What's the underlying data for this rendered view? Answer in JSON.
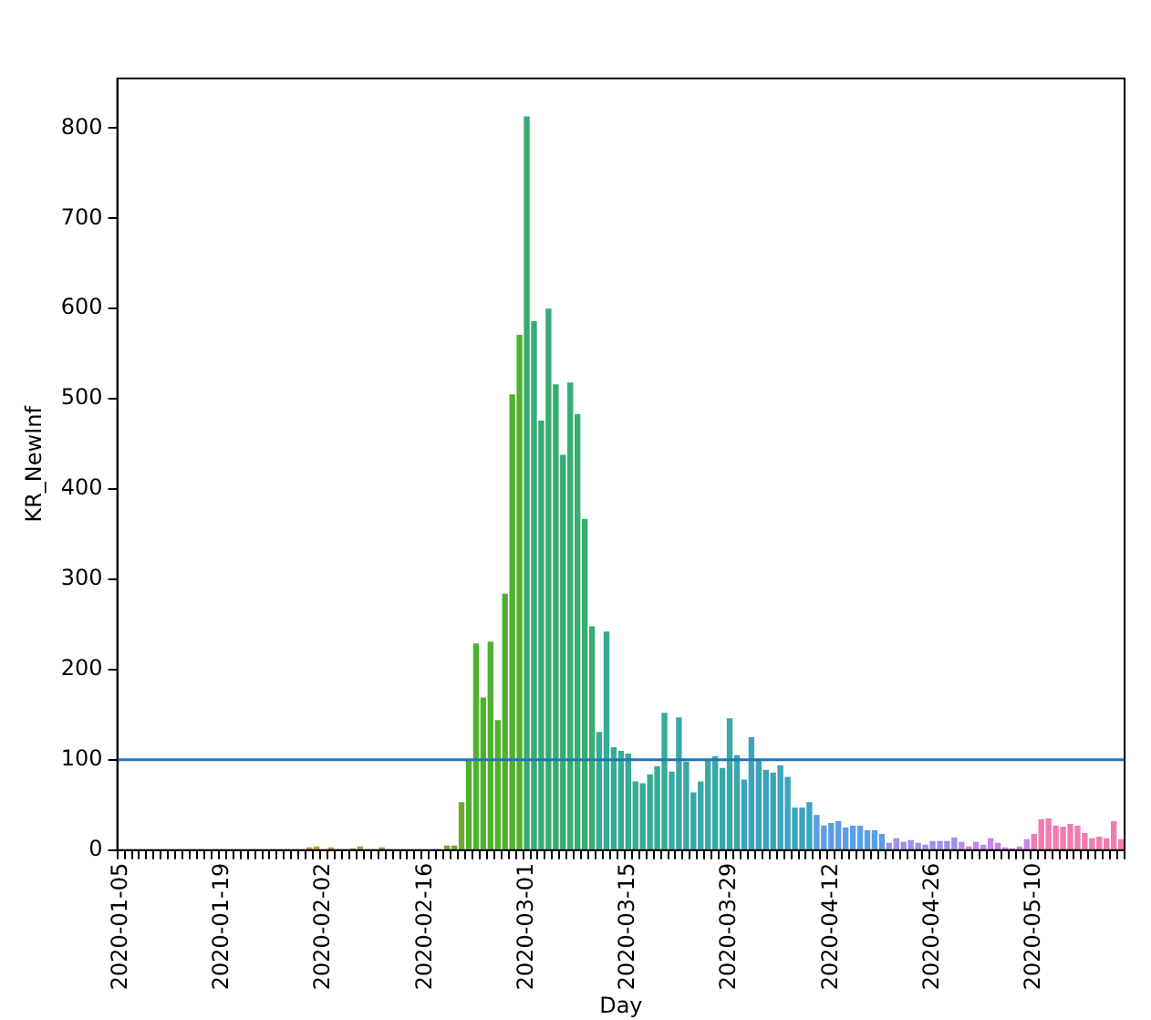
{
  "chart_data": {
    "type": "bar",
    "xlabel": "Day",
    "ylabel": "KR_NewInf",
    "categories": [
      "2020-01-05",
      null,
      null,
      null,
      null,
      null,
      null,
      null,
      null,
      null,
      null,
      null,
      null,
      null,
      "2020-01-19",
      null,
      null,
      null,
      null,
      null,
      null,
      null,
      null,
      null,
      null,
      null,
      null,
      null,
      "2020-02-02",
      null,
      null,
      null,
      null,
      null,
      null,
      null,
      null,
      null,
      null,
      null,
      null,
      null,
      "2020-02-16",
      null,
      null,
      null,
      null,
      null,
      null,
      null,
      null,
      null,
      null,
      null,
      null,
      null,
      "2020-03-01",
      null,
      null,
      null,
      null,
      null,
      null,
      null,
      null,
      null,
      null,
      null,
      null,
      null,
      "2020-03-15",
      null,
      null,
      null,
      null,
      null,
      null,
      null,
      null,
      null,
      null,
      null,
      null,
      null,
      "2020-03-29",
      null,
      null,
      null,
      null,
      null,
      null,
      null,
      null,
      null,
      null,
      null,
      null,
      null,
      "2020-04-12",
      null,
      null,
      null,
      null,
      null,
      null,
      null,
      null,
      null,
      null,
      null,
      null,
      null,
      "2020-04-26",
      null,
      null,
      null,
      null,
      null,
      null,
      null,
      null,
      null,
      null,
      null,
      null,
      null,
      "2020-05-10",
      null,
      null,
      null,
      null,
      null,
      null,
      null,
      null,
      null,
      null,
      null,
      null
    ],
    "values": [
      0,
      0,
      0,
      0,
      0,
      0,
      0,
      0,
      0,
      0,
      0,
      0,
      0,
      0,
      0,
      0,
      0,
      0,
      0,
      0,
      0,
      0,
      0,
      0,
      0,
      0,
      3,
      4,
      1,
      3,
      0,
      1,
      2,
      4,
      0,
      0,
      3,
      1,
      0,
      0,
      0,
      0,
      0,
      0,
      0,
      5,
      5,
      53,
      100,
      229,
      169,
      231,
      144,
      284,
      505,
      571,
      813,
      586,
      476,
      600,
      516,
      438,
      518,
      483,
      367,
      248,
      131,
      242,
      114,
      110,
      107,
      76,
      74,
      84,
      93,
      152,
      87,
      147,
      98,
      64,
      76,
      100,
      104,
      91,
      146,
      105,
      78,
      125,
      101,
      89,
      86,
      94,
      81,
      47,
      47,
      53,
      39,
      27,
      30,
      32,
      25,
      27,
      27,
      22,
      22,
      18,
      8,
      13,
      9,
      11,
      8,
      6,
      10,
      10,
      10,
      14,
      9,
      4,
      9,
      6,
      13,
      8,
      3,
      2,
      4,
      12,
      18,
      34,
      35,
      27,
      26,
      29,
      27,
      19,
      13,
      15,
      13,
      32,
      12
    ],
    "colors": [
      "#f77189",
      "#f77189",
      "#f77189",
      "#f77189",
      "#f77189",
      "#f77189",
      "#f77189",
      "#f77189",
      "#f77189",
      "#f77189",
      "#e8853a",
      "#e8853a",
      "#e8853a",
      "#e8853a",
      "#e8853a",
      "#e8853a",
      "#e8853a",
      "#e8853a",
      "#e8853a",
      "#e8853a",
      "#c39532",
      "#c39532",
      "#c39532",
      "#c39532",
      "#c39532",
      "#c39532",
      "#c39532",
      "#c39532",
      "#c39532",
      "#c39532",
      "#a09c31",
      "#a09c31",
      "#a09c31",
      "#a09c31",
      "#a09c31",
      "#a09c31",
      "#a09c31",
      "#a09c31",
      "#a09c31",
      "#a09c31",
      "#72a831",
      "#72a831",
      "#72a831",
      "#72a831",
      "#72a831",
      "#72a831",
      "#72a831",
      "#72a831",
      "#50b131",
      "#50b131",
      "#50b131",
      "#50b131",
      "#50b131",
      "#50b131",
      "#50b131",
      "#50b131",
      "#36ad72",
      "#36ad72",
      "#36ad72",
      "#36ad72",
      "#36ad72",
      "#36ad72",
      "#36ad72",
      "#36ad72",
      "#36ad72",
      "#36ad72",
      "#37ab93",
      "#37ab93",
      "#37ab93",
      "#37ab93",
      "#37ab93",
      "#37ab93",
      "#37ab93",
      "#37ab93",
      "#37ab93",
      "#37ab93",
      "#39a8a6",
      "#39a8a6",
      "#39a8a6",
      "#39a8a6",
      "#39a8a6",
      "#39a8a6",
      "#39a8a6",
      "#39a8a6",
      "#39a8a6",
      "#39a8a6",
      "#3ca4bd",
      "#3ca4bd",
      "#3ca4bd",
      "#3ca4bd",
      "#3ca4bd",
      "#3ca4bd",
      "#3ca4bd",
      "#3ca4bd",
      "#3ca4bd",
      "#3ca4bd",
      "#5b9ee4",
      "#5b9ee4",
      "#5b9ee4",
      "#5b9ee4",
      "#5b9ee4",
      "#5b9ee4",
      "#5b9ee4",
      "#5b9ee4",
      "#5b9ee4",
      "#5b9ee4",
      "#9c91ed",
      "#9c91ed",
      "#9c91ed",
      "#9c91ed",
      "#9c91ed",
      "#9c91ed",
      "#9c91ed",
      "#9c91ed",
      "#9c91ed",
      "#9c91ed",
      "#c687ea",
      "#c687ea",
      "#c687ea",
      "#c687ea",
      "#c687ea",
      "#c687ea",
      "#c687ea",
      "#c687ea",
      "#c687ea",
      "#c687ea",
      "#f17cb0",
      "#f17cb0",
      "#f17cb0",
      "#f17cb0",
      "#f17cb0",
      "#f17cb0",
      "#f17cb0",
      "#f17cb0",
      "#f17cb0",
      "#f17cb0",
      "#f17cb0",
      "#f17cb0",
      "#f17cb0"
    ],
    "ylim": [
      0,
      855
    ],
    "yticks": [
      0,
      100,
      200,
      300,
      400,
      500,
      600,
      700,
      800
    ],
    "ref_lines": [
      {
        "axis": "y",
        "value": 100,
        "color": "#1f77b4"
      }
    ]
  }
}
